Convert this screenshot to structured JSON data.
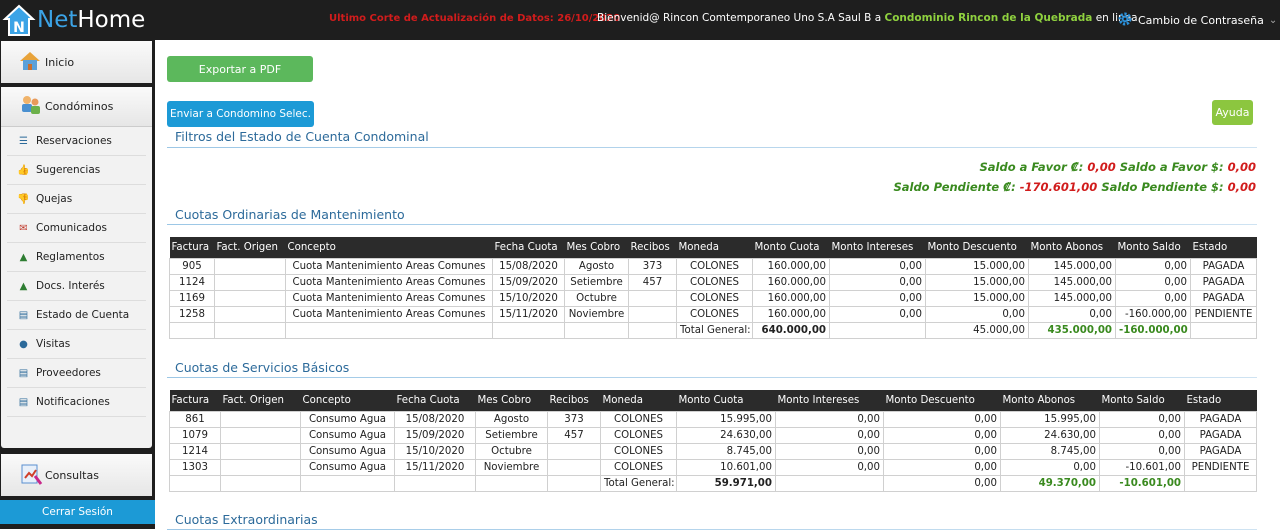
{
  "header": {
    "logo_net": "Net",
    "logo_home": "Home",
    "update_text": "Ultimo Corte de Actualización de Datos: 26/10/2020",
    "welcome_prefix": "Bienvenid@ Rincon Comtemporaneo Uno S.A Saul B  a",
    "condo_name": "Condominio Rincon de la Quebrada",
    "welcome_suffix": "en linea",
    "password_label": "Cambio de Contraseña"
  },
  "sidebar": {
    "inicio": "Inicio",
    "condominios": "Condóminos",
    "items": [
      {
        "label": "Reservaciones",
        "icon": "list-icon"
      },
      {
        "label": "Sugerencias",
        "icon": "thumbs-up-icon"
      },
      {
        "label": "Quejas",
        "icon": "thumbs-down-icon"
      },
      {
        "label": "Comunicados",
        "icon": "envelope-icon"
      },
      {
        "label": "Reglamentos",
        "icon": "bell-icon"
      },
      {
        "label": "Docs. Interés",
        "icon": "bell-icon"
      },
      {
        "label": "Estado de Cuenta",
        "icon": "book-icon"
      },
      {
        "label": "Visitas",
        "icon": "user-icon"
      },
      {
        "label": "Proveedores",
        "icon": "book-icon"
      },
      {
        "label": "Notificaciones",
        "icon": "book-icon"
      }
    ],
    "consultas": "Consultas",
    "logout": "Cerrar Sesión"
  },
  "actions": {
    "export_pdf": "Exportar a PDF",
    "send_condo": "Enviar a Condomino Selec.",
    "help": "Ayuda"
  },
  "filters_title": "Filtros del Estado de Cuenta Condominal",
  "summary": {
    "favor_crc_label": "Saldo a Favor ₡:",
    "favor_crc": "0,00",
    "favor_usd_label": "Saldo a Favor $:",
    "favor_usd": "0,00",
    "pend_crc_label": "Saldo Pendiente ₡:",
    "pend_crc": "-170.601,00",
    "pend_usd_label": "Saldo Pendiente $:",
    "pend_usd": "0,00"
  },
  "ordinarias": {
    "title": "Cuotas Ordinarias de Mantenimiento",
    "columns": [
      "Factura",
      "Fact. Origen",
      "Concepto",
      "Fecha Cuota",
      "Mes Cobro",
      "Recibos",
      "Moneda",
      "Monto Cuota",
      "Monto Intereses",
      "Monto Descuento",
      "Monto Abonos",
      "Monto Saldo",
      "Estado"
    ],
    "rows": [
      [
        "905",
        "",
        "Cuota Mantenimiento Areas Comunes",
        "15/08/2020",
        "Agosto",
        "373",
        "COLONES",
        "160.000,00",
        "0,00",
        "15.000,00",
        "145.000,00",
        "0,00",
        "PAGADA"
      ],
      [
        "1124",
        "",
        "Cuota Mantenimiento Areas Comunes",
        "15/09/2020",
        "Setiembre",
        "457",
        "COLONES",
        "160.000,00",
        "0,00",
        "15.000,00",
        "145.000,00",
        "0,00",
        "PAGADA"
      ],
      [
        "1169",
        "",
        "Cuota Mantenimiento Areas Comunes",
        "15/10/2020",
        "Octubre",
        "",
        "COLONES",
        "160.000,00",
        "0,00",
        "15.000,00",
        "145.000,00",
        "0,00",
        "PAGADA"
      ],
      [
        "1258",
        "",
        "Cuota Mantenimiento Areas Comunes",
        "15/11/2020",
        "Noviembre",
        "",
        "COLONES",
        "160.000,00",
        "0,00",
        "0,00",
        "0,00",
        "-160.000,00",
        "PENDIENTE"
      ]
    ],
    "total_label": "Total General:",
    "total_cuota": "640.000,00",
    "total_desc": "45.000,00",
    "total_abonos": "435.000,00",
    "total_saldo": "-160.000,00"
  },
  "basicos": {
    "title": "Cuotas de Servicios Básicos",
    "columns": [
      "Factura",
      "Fact. Origen",
      "Concepto",
      "Fecha Cuota",
      "Mes Cobro",
      "Recibos",
      "Moneda",
      "Monto Cuota",
      "Monto Intereses",
      "Monto Descuento",
      "Monto Abonos",
      "Monto Saldo",
      "Estado"
    ],
    "rows": [
      [
        "861",
        "",
        "Consumo Agua",
        "15/08/2020",
        "Agosto",
        "373",
        "COLONES",
        "15.995,00",
        "0,00",
        "0,00",
        "15.995,00",
        "0,00",
        "PAGADA"
      ],
      [
        "1079",
        "",
        "Consumo Agua",
        "15/09/2020",
        "Setiembre",
        "457",
        "COLONES",
        "24.630,00",
        "0,00",
        "0,00",
        "24.630,00",
        "0,00",
        "PAGADA"
      ],
      [
        "1214",
        "",
        "Consumo Agua",
        "15/10/2020",
        "Octubre",
        "",
        "COLONES",
        "8.745,00",
        "0,00",
        "0,00",
        "8.745,00",
        "0,00",
        "PAGADA"
      ],
      [
        "1303",
        "",
        "Consumo Agua",
        "15/11/2020",
        "Noviembre",
        "",
        "COLONES",
        "10.601,00",
        "0,00",
        "0,00",
        "0,00",
        "-10.601,00",
        "PENDIENTE"
      ]
    ],
    "total_label": "Total General:",
    "total_cuota": "59.971,00",
    "total_desc": "0,00",
    "total_abonos": "49.370,00",
    "total_saldo": "-10.601,00"
  },
  "extraordinarias": {
    "title": "Cuotas Extraordinarias"
  }
}
